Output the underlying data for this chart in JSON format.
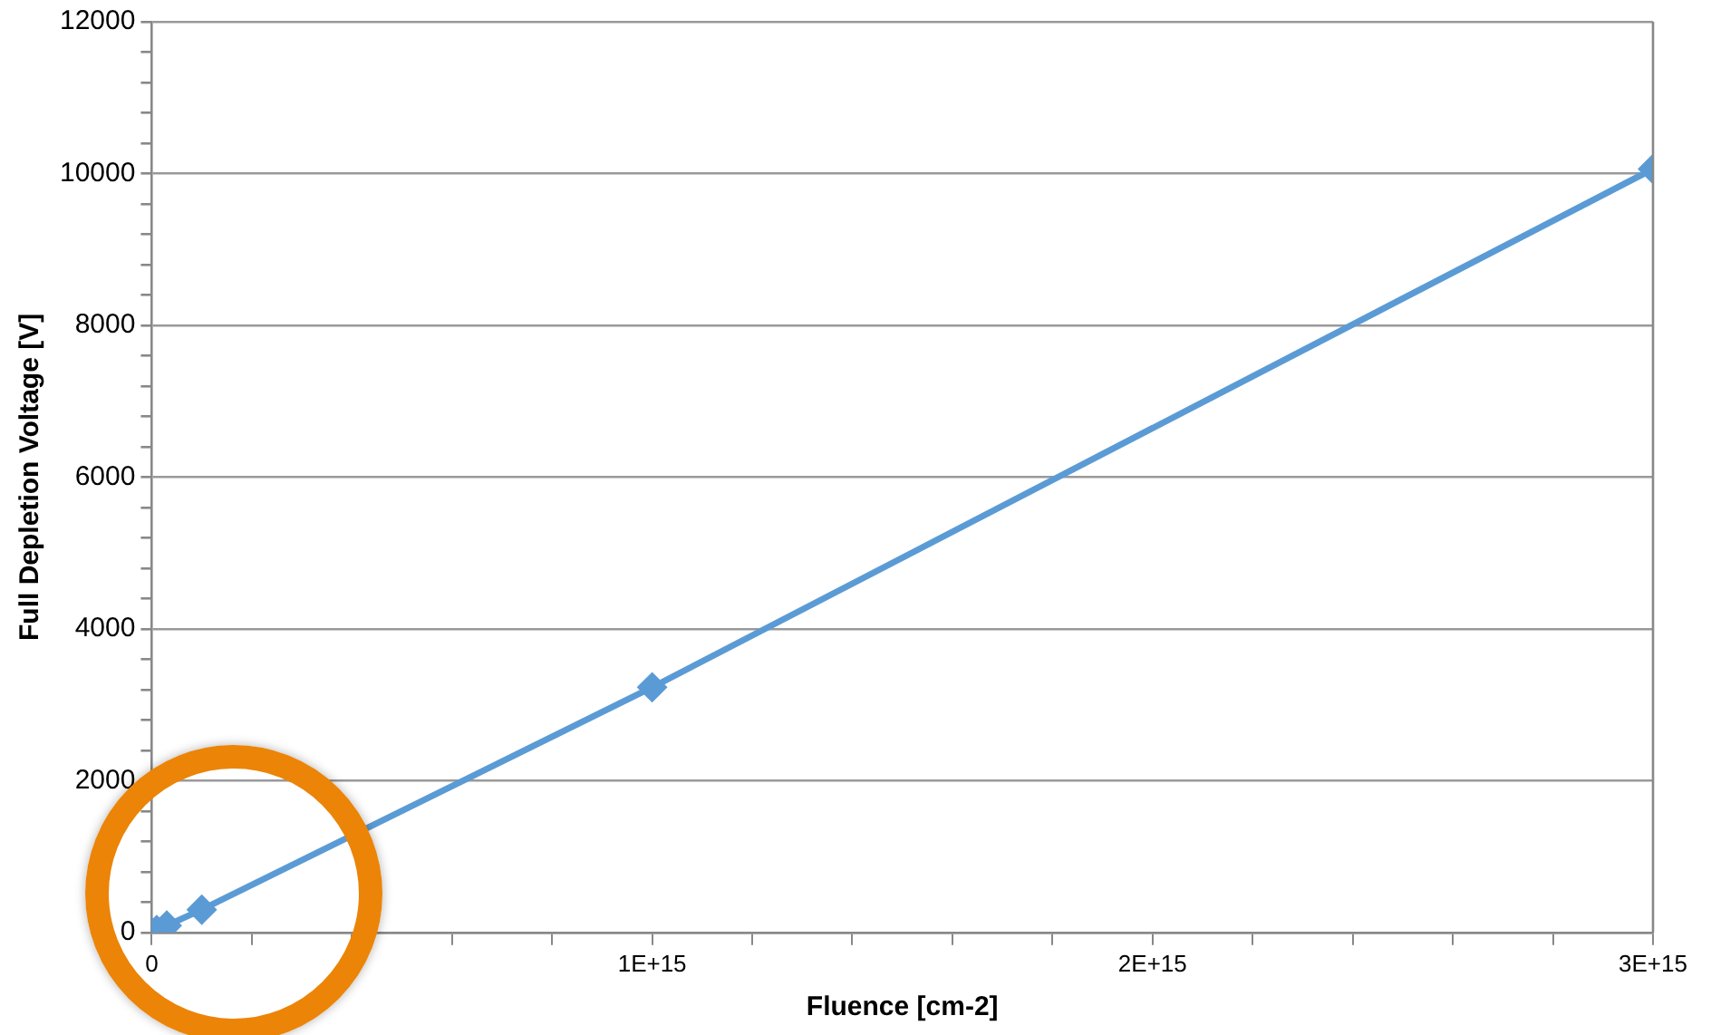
{
  "chart_data": {
    "type": "line",
    "xlabel": "Fluence [cm-2]",
    "ylabel": "Full Depletion Voltage [V]",
    "x": [
      0,
      10000000000000.0,
      30000000000000.0,
      100000000000000.0,
      1000000000000000.0,
      3000000000000000.0
    ],
    "series": [
      {
        "color": "#5b9bd5",
        "values": [
          0,
          30,
          90,
          300,
          3230,
          10060
        ]
      }
    ],
    "xlim": [
      0,
      3000000000000000.0
    ],
    "xticks": [
      0,
      {
        "value": 200000000000000.0,
        "label": null
      },
      {
        "value": 400000000000000.0,
        "label": null
      },
      {
        "value": 600000000000000.0,
        "label": null
      },
      {
        "value": 800000000000000.0,
        "label": null
      },
      {
        "value": 1000000000000000.0,
        "label": "1E+15"
      },
      {
        "value": 1200000000000000.0,
        "label": null
      },
      {
        "value": 1400000000000000.0,
        "label": null
      },
      {
        "value": 1600000000000000.0,
        "label": null
      },
      {
        "value": 1800000000000000.0,
        "label": null
      },
      {
        "value": 2000000000000000.0,
        "label": "2E+15"
      },
      {
        "value": 2200000000000000.0,
        "label": null
      },
      {
        "value": 2400000000000000.0,
        "label": null
      },
      {
        "value": 2600000000000000.0,
        "label": null
      },
      {
        "value": 2800000000000000.0,
        "label": null
      },
      {
        "value": 3000000000000000.0,
        "label": "3E+15"
      }
    ],
    "ylim": [
      0,
      12000
    ],
    "yticks": [
      0,
      {
        "value": 400,
        "label": null
      },
      {
        "value": 800,
        "label": null
      },
      {
        "value": 1200,
        "label": null
      },
      {
        "value": 1600,
        "label": null
      },
      2000,
      {
        "value": 2400,
        "label": null
      },
      {
        "value": 2800,
        "label": null
      },
      {
        "value": 3200,
        "label": null
      },
      {
        "value": 3600,
        "label": null
      },
      4000,
      {
        "value": 4400,
        "label": null
      },
      {
        "value": 4800,
        "label": null
      },
      {
        "value": 5200,
        "label": null
      },
      {
        "value": 5600,
        "label": null
      },
      6000,
      {
        "value": 6400,
        "label": null
      },
      {
        "value": 6800,
        "label": null
      },
      {
        "value": 7200,
        "label": null
      },
      {
        "value": 7600,
        "label": null
      },
      8000,
      {
        "value": 8400,
        "label": null
      },
      {
        "value": 8800,
        "label": null
      },
      {
        "value": 9200,
        "label": null
      },
      {
        "value": 9600,
        "label": null
      },
      10000,
      {
        "value": 10400,
        "label": null
      },
      {
        "value": 10800,
        "label": null
      },
      {
        "value": 11200,
        "label": null
      },
      {
        "value": 11600,
        "label": null
      },
      12000
    ],
    "grid": "y",
    "legend": false,
    "marker": "diamond",
    "line_style": "solid"
  }
}
